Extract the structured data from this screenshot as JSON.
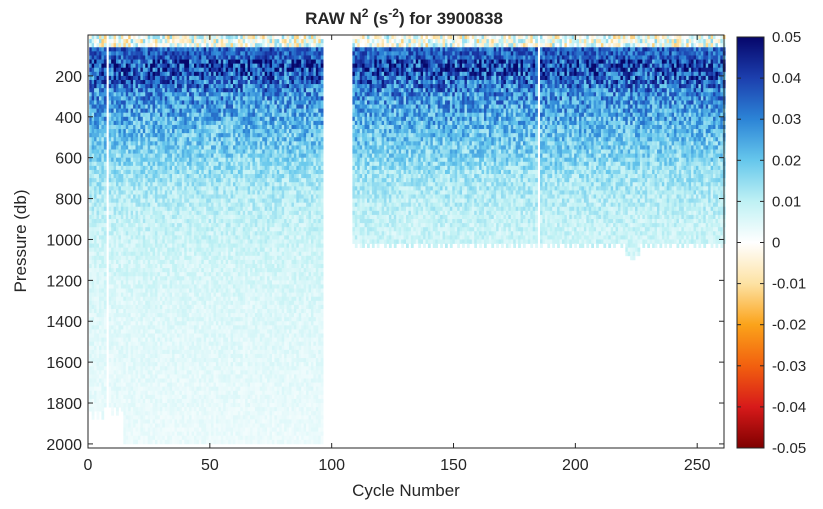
{
  "chart_data": {
    "type": "heatmap",
    "title": {
      "prefix": "RAW N",
      "exp1": "2",
      "mid": " (s",
      "exp2": "-2",
      "suffix": ") for 3900838"
    },
    "xlabel": "Cycle Number",
    "ylabel": "Pressure (db)",
    "xlim": [
      0,
      261
    ],
    "ylim": [
      2020,
      0
    ],
    "y_reversed": true,
    "xticks": [
      0,
      50,
      100,
      150,
      200,
      250
    ],
    "yticks": [
      200,
      400,
      600,
      800,
      1000,
      1200,
      1400,
      1600,
      1800,
      2000
    ],
    "colorbar": {
      "range": [
        -0.05,
        0.05
      ],
      "ticks": [
        0.05,
        0.04,
        0.03,
        0.02,
        0.01,
        0,
        -0.01,
        -0.02,
        -0.03,
        -0.04,
        -0.05
      ],
      "colormap": "diverging red-yellow-white-cyan-blue",
      "stops": [
        "#7f0000",
        "#d71a1a",
        "#f2600f",
        "#fba31a",
        "#fde2a3",
        "#ffffff",
        "#bff1f4",
        "#66c7ec",
        "#2c84d6",
        "#1c3fae",
        "#06066a"
      ]
    },
    "coverage_description": {
      "deep_profiles_cycles": [
        1,
        96
      ],
      "deep_profiles_max_pressure": 2000,
      "gap_cycles": [
        97,
        108
      ],
      "shallow_profiles_cycles": [
        109,
        261
      ],
      "shallow_profiles_max_pressure": 1020,
      "missing_cycles": [
        8,
        185
      ]
    },
    "value_profile": {
      "pressure": [
        0,
        50,
        150,
        300,
        500,
        700,
        900,
        1100,
        1400,
        1700,
        2000
      ],
      "typical_n2": [
        0.0,
        0.03,
        0.04,
        0.028,
        0.02,
        0.013,
        0.009,
        0.007,
        0.005,
        0.004,
        0.003
      ]
    }
  }
}
